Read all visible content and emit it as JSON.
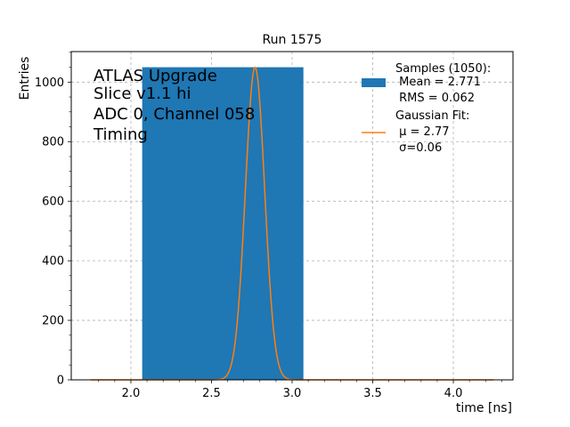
{
  "chart_data": {
    "type": "bar",
    "title": "Run 1575",
    "xlabel": "time [ns]",
    "ylabel": "Entries",
    "xlim": [
      1.63,
      4.37
    ],
    "ylim": [
      0,
      1102.5
    ],
    "grid": true,
    "x_ticks": [
      "2.0",
      "2.5",
      "3.0",
      "3.5",
      "4.0"
    ],
    "y_ticks": [
      "0",
      "200",
      "400",
      "600",
      "800",
      "1000"
    ],
    "annotation_lines": [
      "ATLAS Upgrade",
      "Slice v1.1 hi",
      "ADC 0, Channel 058",
      "Timing"
    ],
    "histogram": {
      "bin_start": 2.07,
      "bin_end": 3.07,
      "count": 1050,
      "color": "#1f77b4"
    },
    "gaussian_fit": {
      "mu": 2.77,
      "sigma": 0.06,
      "amplitude": 1050,
      "x_range": [
        1.75,
        4.25
      ],
      "color": "#ff7f0e"
    },
    "legend": {
      "placement": "top-right",
      "histogram_lines": [
        "Samples (1050):",
        " Mean = 2.771",
        " RMS = 0.062"
      ],
      "fit_lines": [
        "Gaussian Fit:",
        " μ = 2.77",
        " σ=0.06"
      ]
    }
  }
}
